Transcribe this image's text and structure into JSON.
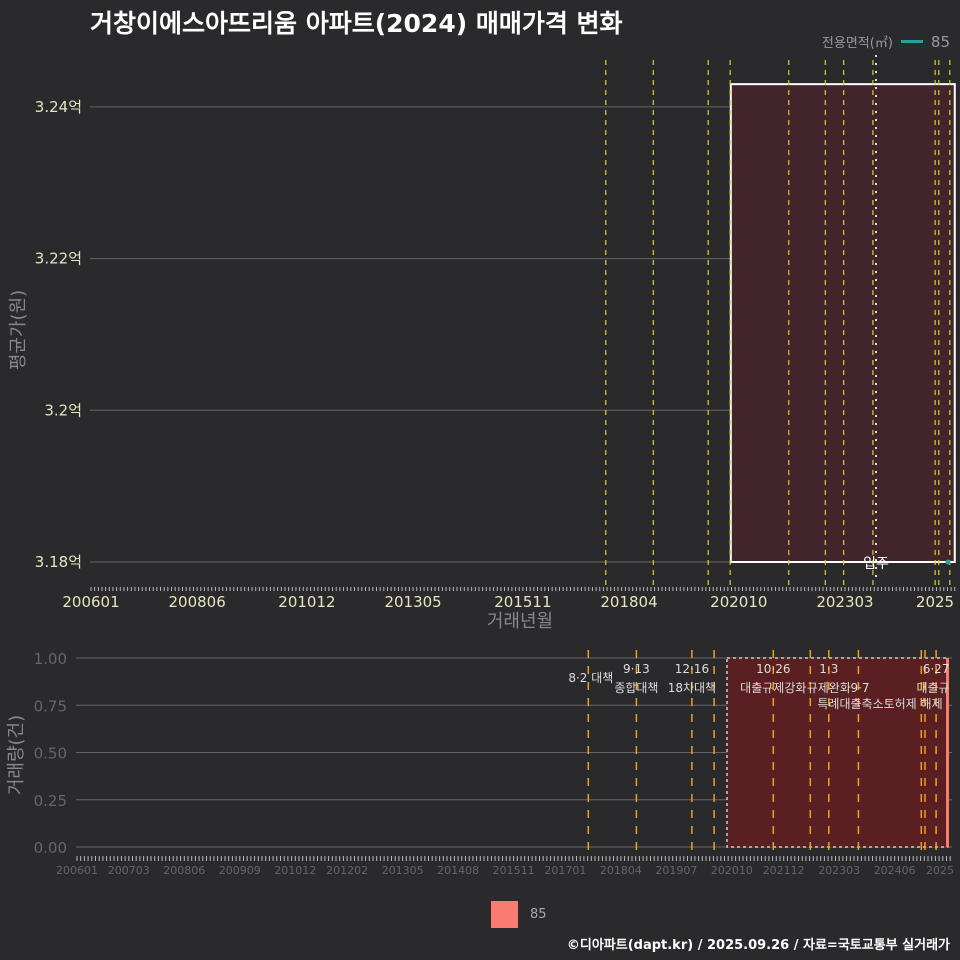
{
  "title": "거창이에스아뜨리움 아파트(2024) 매매가격 변화",
  "legend": {
    "title": "전용면적(㎡)",
    "value": "85",
    "line_color": "#2aa198",
    "bar_color": "#f87c72"
  },
  "caption": "©디아파트(dapt.kr) / 2025.09.26 / 자료=국토교통부 실거래가",
  "chart_data": [
    {
      "type": "line",
      "ylabel": "평균가(원)",
      "xlabel": "거래년월",
      "ylim": [
        3.18,
        3.243
      ],
      "yticks": [
        3.18,
        3.2,
        3.22,
        3.24
      ],
      "ytick_labels": [
        "3.18억",
        "3.2억",
        "3.22억",
        "3.24억"
      ],
      "xticks": [
        "200601",
        "200806",
        "201012",
        "201305",
        "201511",
        "201804",
        "202010",
        "202303",
        "2025"
      ],
      "series": [
        {
          "name": "85",
          "x": [
            "202509"
          ],
          "y": [
            3.18
          ]
        }
      ],
      "highlight_range": {
        "from": "202010",
        "to": "202509",
        "ymin": 3.18,
        "ymax": 3.243
      },
      "annotation": "입주",
      "grid": true
    },
    {
      "type": "bar",
      "ylabel": "거래량(건)",
      "ylim": [
        0,
        1
      ],
      "yticks": [
        "0.00",
        "0.25",
        "0.50",
        "0.75",
        "1.00"
      ],
      "xticks": [
        "200601",
        "200703",
        "200806",
        "200909",
        "201012",
        "201202",
        "201305",
        "201408",
        "201511",
        "201701",
        "201804",
        "201907",
        "202010",
        "202112",
        "202303",
        "202406",
        "2025"
      ],
      "series": [
        {
          "name": "85",
          "x": [
            "202509"
          ],
          "values": [
            1
          ]
        }
      ],
      "highlight_range": {
        "from": "202010",
        "to": "202509"
      },
      "events": [
        {
          "date": "201708",
          "date_label": "8·2 대책",
          "label": ""
        },
        {
          "date": "201809",
          "date_label": "9·13",
          "label": "종합대책"
        },
        {
          "date": "201912",
          "date_label": "12·16",
          "label": "18차대책"
        },
        {
          "date": "202006",
          "date_label": "",
          "label": ""
        },
        {
          "date": "202110",
          "date_label": "10·26",
          "label": "대출규제강화"
        },
        {
          "date": "202208",
          "date_label": "",
          "label": ""
        },
        {
          "date": "202301",
          "date_label": "1·3",
          "label": "규제완화"
        },
        {
          "date": "202309",
          "date_label": "",
          "label": "9·7"
        },
        {
          "date": "202502",
          "date_label": "",
          "label": ""
        },
        {
          "date": "202503",
          "date_label": "",
          "label": "특례대출축소토허제 해제"
        },
        {
          "date": "202506",
          "date_label": "6·27",
          "label": "대출규"
        }
      ]
    }
  ]
}
